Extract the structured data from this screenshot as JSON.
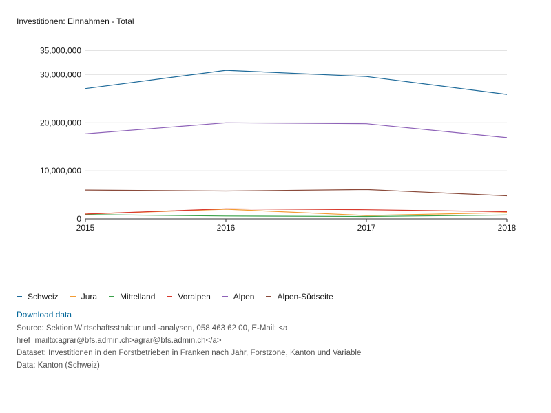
{
  "chart_data": {
    "type": "line",
    "title": "Investitionen: Einnahmen - Total",
    "x": [
      "2015",
      "2016",
      "2017",
      "2018"
    ],
    "y_ticks": [
      0,
      10000000,
      20000000,
      30000000,
      35000000
    ],
    "y_tick_labels": [
      "0",
      "10,000,000",
      "20,000,000",
      "30,000,000",
      "35,000,000"
    ],
    "ylim": [
      0,
      35000000
    ],
    "grid": true,
    "series": [
      {
        "name": "Schweiz",
        "color": "#1f6b9a",
        "values": [
          27100000,
          30900000,
          29600000,
          25900000
        ]
      },
      {
        "name": "Jura",
        "color": "#f39c34",
        "values": [
          1000000,
          2000000,
          700000,
          1300000
        ]
      },
      {
        "name": "Mittelland",
        "color": "#3aa24a",
        "values": [
          900000,
          600000,
          500000,
          800000
        ]
      },
      {
        "name": "Voralpen",
        "color": "#d83a2e",
        "values": [
          1000000,
          2100000,
          1900000,
          1500000
        ]
      },
      {
        "name": "Alpen",
        "color": "#8e62b8",
        "values": [
          17700000,
          20000000,
          19800000,
          16900000
        ]
      },
      {
        "name": "Alpen-Südseite",
        "color": "#8a4a3a",
        "values": [
          6000000,
          5800000,
          6100000,
          4800000
        ]
      }
    ]
  },
  "download_label": "Download data",
  "source_text": "Source: Sektion Wirtschaftsstruktur und -analysen, 058 463 62 00, E-Mail: <a",
  "source_text_2": "href=mailto:agrar@bfs.admin.ch>agrar@bfs.admin.ch</a>",
  "dataset_text": "Dataset: Investitionen in den Forstbetrieben in Franken nach Jahr, Forstzone, Kanton und Variable",
  "data_text": "Data: Kanton (Schweiz)"
}
